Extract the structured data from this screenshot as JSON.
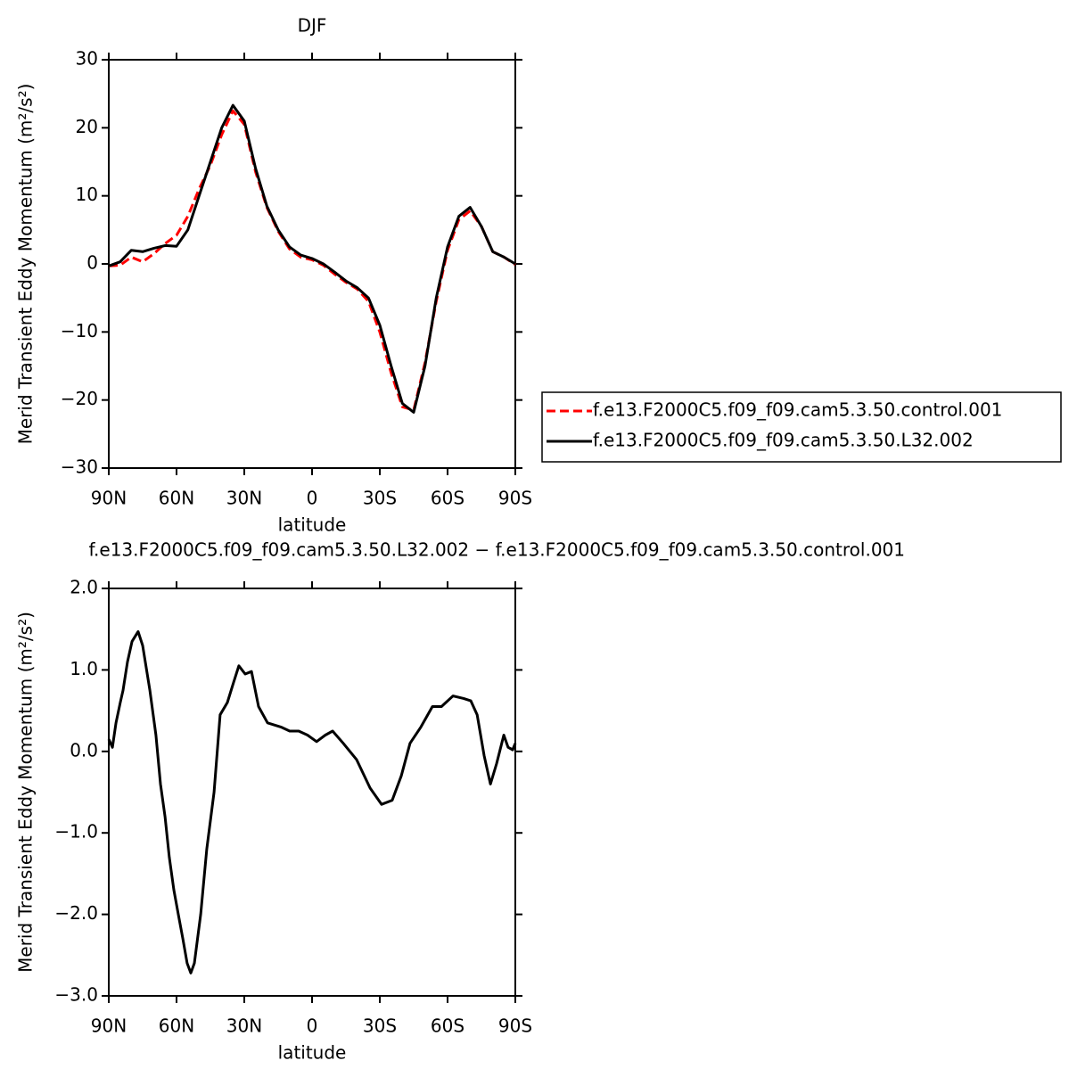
{
  "chart_data": [
    {
      "type": "line",
      "title": "DJF",
      "x_label": "latitude",
      "y_label": "Merid Transient Eddy Momentum (m²/s²)",
      "x": [
        90,
        85,
        80,
        75,
        70,
        65,
        60,
        55,
        50,
        45,
        40,
        35,
        30,
        25,
        20,
        15,
        10,
        5,
        0,
        -5,
        -10,
        -15,
        -20,
        -25,
        -30,
        -35,
        -40,
        -45,
        -50,
        -55,
        -60,
        -65,
        -70,
        -75,
        -80,
        -85,
        -90
      ],
      "series": [
        {
          "name": "f.e13.F2000C5.f09_f09.cam5.3.50.control.001",
          "color": "#ff0000",
          "dash": true,
          "values": [
            -0.3,
            -0.2,
            1.0,
            0.3,
            1.5,
            3.0,
            4.2,
            7,
            11,
            14.5,
            19,
            22.5,
            20.5,
            13.5,
            8.3,
            4.8,
            2.2,
            1.0,
            0.6,
            -0.2,
            -1.5,
            -2.7,
            -3.7,
            -5.5,
            -10,
            -16,
            -21,
            -21.5,
            -14.5,
            -5.5,
            2,
            6.5,
            7.8,
            5.5,
            1.8,
            1.0,
            -0.1
          ]
        },
        {
          "name": "f.e13.F2000C5.f09_f09.cam5.3.50.L32.002",
          "color": "#000000",
          "dash": false,
          "values": [
            -0.3,
            0.3,
            2.0,
            1.8,
            2.3,
            2.7,
            2.6,
            5,
            10,
            15,
            20,
            23.3,
            21,
            14,
            8.5,
            5,
            2.5,
            1.3,
            0.8,
            0,
            -1.2,
            -2.5,
            -3.5,
            -5,
            -9,
            -15,
            -20.5,
            -21.8,
            -15,
            -5,
            2.5,
            7,
            8.3,
            5.5,
            1.8,
            1,
            0
          ]
        }
      ],
      "xlim": [
        90,
        -90
      ],
      "xticks": [
        {
          "value": 90,
          "label": "90N"
        },
        {
          "value": 60,
          "label": "60N"
        },
        {
          "value": 30,
          "label": "30N"
        },
        0,
        {
          "value": -30,
          "label": "30S"
        },
        {
          "value": -60,
          "label": "60S"
        },
        {
          "value": -90,
          "label": "90S"
        }
      ],
      "ylim": [
        -30,
        30
      ],
      "yticks": [
        {
          "value": -30,
          "label": "−30"
        },
        {
          "value": -20,
          "label": "−20"
        },
        {
          "value": -10,
          "label": "−10"
        },
        0,
        10,
        20,
        30
      ],
      "legend": "right"
    },
    {
      "type": "line",
      "title": "f.e13.F2000C5.f09_f09.cam5.3.50.L32.002 − f.e13.F2000C5.f09_f09.cam5.3.50.control.001",
      "x_label": "latitude",
      "y_label": "Merid Transient Eddy Momentum (m²/s²)",
      "x": [
        90,
        88.4,
        86.8,
        84.9,
        83.7,
        81.7,
        79.7,
        77,
        75,
        71.8,
        69.1,
        67.1,
        65.1,
        63.2,
        61.2,
        59.2,
        57.2,
        55.3,
        53.7,
        52.1,
        49.3,
        46.6,
        43.4,
        40.7,
        37.5,
        34.7,
        32.4,
        29.6,
        26.8,
        23.7,
        19.7,
        13.8,
        9.9,
        5.9,
        2,
        -2,
        -5.9,
        -9.1,
        -13.8,
        -19.7,
        -25.7,
        -30.8,
        -35.5,
        -39.5,
        -43.4,
        -48.2,
        -53.3,
        -57.3,
        -62.4,
        -67.1,
        -70.3,
        -73.1,
        -76.2,
        -79,
        -81.7,
        -84.9,
        -86.8,
        -88.8,
        -90
      ],
      "values": [
        0.15,
        0.05,
        0.35,
        0.6,
        0.75,
        1.1,
        1.35,
        1.47,
        1.3,
        0.75,
        0.2,
        -0.4,
        -0.8,
        -1.3,
        -1.7,
        -2.0,
        -2.3,
        -2.6,
        -2.72,
        -2.6,
        -2.0,
        -1.2,
        -0.5,
        0.45,
        0.6,
        0.85,
        1.05,
        0.95,
        0.98,
        0.55,
        0.35,
        0.3,
        0.25,
        0.25,
        0.2,
        0.12,
        0.2,
        0.25,
        0.1,
        -0.1,
        -0.45,
        -0.65,
        -0.6,
        -0.3,
        0.1,
        0.3,
        0.55,
        0.55,
        0.68,
        0.65,
        0.62,
        0.45,
        -0.05,
        -0.4,
        -0.15,
        0.2,
        0.05,
        0.02,
        0.1
      ],
      "color": "#000000",
      "xlim": [
        90,
        -90
      ],
      "xticks": [
        {
          "value": 90,
          "label": "90N"
        },
        {
          "value": 60,
          "label": "60N"
        },
        {
          "value": 30,
          "label": "30N"
        },
        0,
        {
          "value": -30,
          "label": "30S"
        },
        {
          "value": -60,
          "label": "60S"
        },
        {
          "value": -90,
          "label": "90S"
        }
      ],
      "ylim": [
        -3.0,
        2.0
      ],
      "yticks": [
        {
          "value": -3.0,
          "label": "−3.0"
        },
        {
          "value": -2.0,
          "label": "−2.0"
        },
        {
          "value": -1.0,
          "label": "−1.0"
        },
        {
          "value": 0.0,
          "label": "0.0"
        },
        {
          "value": 1.0,
          "label": "1.0"
        },
        {
          "value": 2.0,
          "label": "2.0"
        }
      ]
    }
  ]
}
